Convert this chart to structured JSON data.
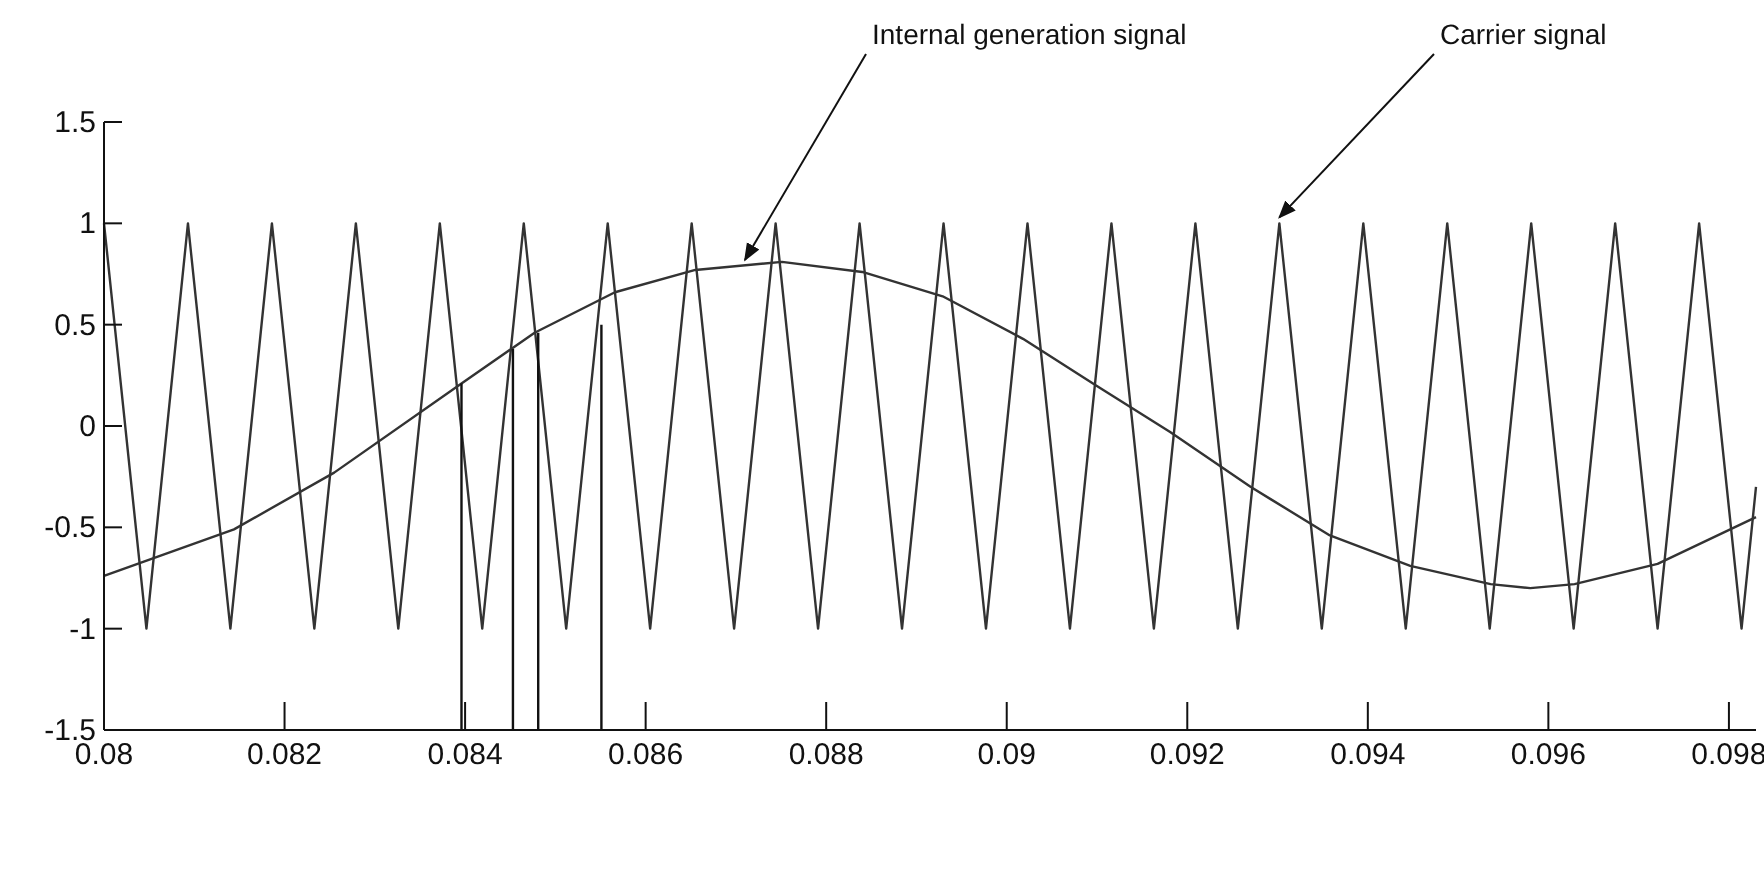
{
  "chart_data": {
    "type": "line",
    "xlim": [
      0.08,
      0.0983
    ],
    "xticks": [
      0.08,
      0.082,
      0.084,
      0.086,
      0.088,
      0.09,
      0.092,
      0.094,
      0.096,
      0.098
    ],
    "ylim": [
      -1.5,
      1.5
    ],
    "yticks": [
      1.5,
      1,
      0.5,
      0,
      -0.5,
      -1,
      -1.5
    ],
    "series": [
      {
        "color": "#333333",
        "x": [
          0.08,
          0.08047,
          0.08093,
          0.0814,
          0.08186,
          0.08233,
          0.08279,
          0.08326,
          0.08372,
          0.08419,
          0.08465,
          0.08512,
          0.08558,
          0.08605,
          0.08651,
          0.08698,
          0.08744,
          0.08791,
          0.08837,
          0.08884,
          0.0893,
          0.08977,
          0.09023,
          0.0907,
          0.09116,
          0.09163,
          0.09209,
          0.09256,
          0.09302,
          0.09349,
          0.09395,
          0.09442,
          0.09488,
          0.09535,
          0.09581,
          0.09628,
          0.09674,
          0.09721,
          0.09767,
          0.09814,
          0.0983
        ],
        "values": [
          1,
          -1,
          1,
          -1,
          1,
          -1,
          1,
          -1,
          1,
          -1,
          1,
          -1,
          1,
          -1,
          1,
          -1,
          1,
          -1,
          1,
          -1,
          1,
          -1,
          1,
          -1,
          1,
          -1,
          1,
          -1,
          1,
          -1,
          1,
          -1,
          1,
          -1,
          1,
          -1,
          1,
          -1,
          1,
          -1,
          -0.3
        ]
      },
      {
        "color": "#333333",
        "x": [
          0.08,
          0.08144,
          0.08255,
          0.08396,
          0.08477,
          0.08566,
          0.08655,
          0.08751,
          0.0884,
          0.08929,
          0.09018,
          0.09099,
          0.09181,
          0.0927,
          0.09358,
          0.09447,
          0.09536,
          0.0958,
          0.09629,
          0.09721,
          0.0983
        ],
        "values": [
          -0.74,
          -0.51,
          -0.23,
          0.21,
          0.46,
          0.66,
          0.77,
          0.81,
          0.76,
          0.64,
          0.43,
          0.2,
          -0.03,
          -0.3,
          -0.54,
          -0.69,
          -0.78,
          -0.8,
          -0.78,
          -0.68,
          -0.45
        ]
      },
      {
        "color": "#111111",
        "x": [
          0.08396,
          0.08396
        ],
        "values": [
          0.21,
          -1.5
        ]
      },
      {
        "color": "#111111",
        "x": [
          0.08453,
          0.08453
        ],
        "values": [
          0.38,
          -1.5
        ]
      },
      {
        "color": "#111111",
        "x": [
          0.08481,
          0.08481
        ],
        "values": [
          0.46,
          -1.5
        ]
      },
      {
        "color": "#111111",
        "x": [
          0.08551,
          0.08551
        ],
        "values": [
          0.5,
          -1.5
        ]
      }
    ],
    "annotations": [
      {
        "text": "Internal generation signal",
        "x": 0.0871,
        "y": 0.79
      },
      {
        "text": "Carrier signal",
        "x": 0.09302,
        "y": 1
      }
    ]
  }
}
